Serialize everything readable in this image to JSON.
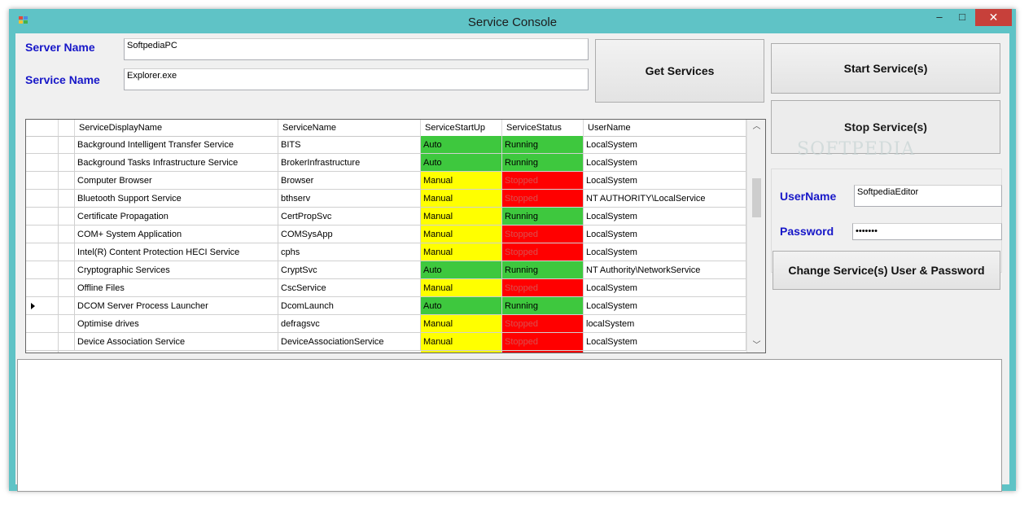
{
  "window": {
    "title": "Service Console",
    "minimize": "–",
    "maximize": "□",
    "close": "✕"
  },
  "form": {
    "server_name_label": "Server Name",
    "server_name_value": "SoftpediaPC",
    "service_name_label": "Service Name",
    "service_name_value": "Explorer.exe",
    "get_services": "Get Services",
    "start_services": "Start Service(s)",
    "stop_services": "Stop Service(s)",
    "username_label": "UserName",
    "username_value": "SoftpediaEditor",
    "password_label": "Password",
    "password_value": "•••••••",
    "change_credentials": "Change Service(s) User & Password",
    "watermark": "SOFTPEDIA"
  },
  "grid": {
    "columns": [
      "ServiceDisplayName",
      "ServiceName",
      "ServiceStartUp",
      "ServiceStatus",
      "UserName"
    ],
    "rows": [
      {
        "checked": false,
        "current": false,
        "display": "Background Intelligent Transfer Service",
        "name": "BITS",
        "startup": "Auto",
        "status": "Running",
        "user": "LocalSystem"
      },
      {
        "checked": false,
        "current": false,
        "display": "Background Tasks Infrastructure Service",
        "name": "BrokerInfrastructure",
        "startup": "Auto",
        "status": "Running",
        "user": "LocalSystem"
      },
      {
        "checked": false,
        "current": false,
        "display": "Computer Browser",
        "name": "Browser",
        "startup": "Manual",
        "status": "Stopped",
        "user": "LocalSystem"
      },
      {
        "checked": true,
        "current": false,
        "display": "Bluetooth Support Service",
        "name": "bthserv",
        "startup": "Manual",
        "status": "Stopped",
        "user": "NT AUTHORITY\\LocalService"
      },
      {
        "checked": false,
        "current": false,
        "display": "Certificate Propagation",
        "name": "CertPropSvc",
        "startup": "Manual",
        "status": "Running",
        "user": "LocalSystem"
      },
      {
        "checked": false,
        "current": false,
        "display": "COM+ System Application",
        "name": "COMSysApp",
        "startup": "Manual",
        "status": "Stopped",
        "user": "LocalSystem"
      },
      {
        "checked": false,
        "current": false,
        "display": "Intel(R) Content Protection HECI Service",
        "name": "cphs",
        "startup": "Manual",
        "status": "Stopped",
        "user": "LocalSystem"
      },
      {
        "checked": true,
        "current": false,
        "display": "Cryptographic Services",
        "name": "CryptSvc",
        "startup": "Auto",
        "status": "Running",
        "user": "NT Authority\\NetworkService"
      },
      {
        "checked": false,
        "current": false,
        "display": "Offline Files",
        "name": "CscService",
        "startup": "Manual",
        "status": "Stopped",
        "user": "LocalSystem"
      },
      {
        "checked": true,
        "current": true,
        "display": "DCOM Server Process Launcher",
        "name": "DcomLaunch",
        "startup": "Auto",
        "status": "Running",
        "user": "LocalSystem"
      },
      {
        "checked": false,
        "current": false,
        "display": "Optimise drives",
        "name": "defragsvc",
        "startup": "Manual",
        "status": "Stopped",
        "user": "localSystem"
      },
      {
        "checked": false,
        "current": false,
        "display": "Device Association Service",
        "name": "DeviceAssociationService",
        "startup": "Manual",
        "status": "Stopped",
        "user": "LocalSystem"
      }
    ]
  },
  "colors": {
    "auto": "#3ec83e",
    "manual": "#ffff00",
    "running": "#3ec83e",
    "stopped": "#ff0000"
  }
}
